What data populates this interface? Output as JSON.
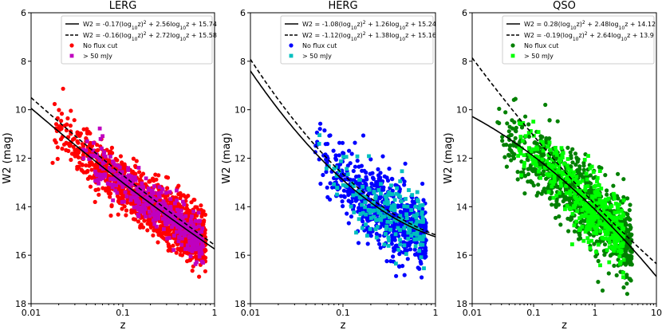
{
  "figure": {
    "ylabel": "W2 (mag)",
    "xlabel": "z"
  },
  "chart_data": [
    {
      "type": "scatter",
      "title": "LERG",
      "xlabel": "z",
      "ylabel": "W2 (mag)",
      "xscale": "log",
      "xlim": [
        0.01,
        1
      ],
      "ylim": [
        18,
        6
      ],
      "y_inverted": true,
      "xticks": [
        0.01,
        0.1,
        1
      ],
      "xtick_labels": [
        "0.01",
        "0.1",
        "1"
      ],
      "yticks": [
        6,
        8,
        10,
        12,
        14,
        16,
        18
      ],
      "ytick_labels": [
        "6",
        "8",
        "10",
        "12",
        "14",
        "16",
        "18"
      ],
      "fits": [
        {
          "label": "W2 = -0.17(log10z)^2 + 2.56log10z + 15.74",
          "a": -0.17,
          "b": 2.56,
          "c": 15.74,
          "style": "solid"
        },
        {
          "label": "W2 = -0.16(log10z)^2 + 2.72log10z + 15.58",
          "a": -0.16,
          "b": 2.72,
          "c": 15.58,
          "style": "dashed"
        }
      ],
      "series": [
        {
          "name": "No flux cut",
          "marker": "circle",
          "color": "#ff0000",
          "z_range": [
            0.016,
            0.8
          ],
          "approx_count": 1400,
          "scatter_mag": 0.55
        },
        {
          "name": "> 50 mJy",
          "marker": "square",
          "color": "#bf00bf",
          "z_range": [
            0.035,
            0.75
          ],
          "approx_count": 420,
          "scatter_mag": 0.45
        }
      ],
      "legend": "top-right"
    },
    {
      "type": "scatter",
      "title": "HERG",
      "xlabel": "z",
      "ylabel": "W2 (mag)",
      "xscale": "log",
      "xlim": [
        0.01,
        1
      ],
      "ylim": [
        18,
        6
      ],
      "y_inverted": true,
      "xticks": [
        0.01,
        0.1,
        1
      ],
      "xtick_labels": [
        "0.01",
        "0.1",
        "1"
      ],
      "yticks": [
        6,
        8,
        10,
        12,
        14,
        16,
        18
      ],
      "ytick_labels": [
        "6",
        "8",
        "10",
        "12",
        "14",
        "16",
        "18"
      ],
      "fits": [
        {
          "label": "W2 = -1.08(log10z)^2 + 1.26log10z + 15.24",
          "a": -1.08,
          "b": 1.26,
          "c": 15.24,
          "style": "solid"
        },
        {
          "label": "W2 = -1.12(log10z)^2 + 1.38log10z + 15.16",
          "a": -1.12,
          "b": 1.38,
          "c": 15.16,
          "style": "dashed"
        }
      ],
      "series": [
        {
          "name": "No flux cut",
          "marker": "circle",
          "color": "#0000ff",
          "z_range": [
            0.045,
            0.8
          ],
          "approx_count": 700,
          "scatter_mag": 0.75
        },
        {
          "name": "> 50 mJy",
          "marker": "square",
          "color": "#00bfbf",
          "z_range": [
            0.05,
            0.75
          ],
          "approx_count": 200,
          "scatter_mag": 0.7
        }
      ],
      "legend": "top-right"
    },
    {
      "type": "scatter",
      "title": "QSO",
      "xlabel": "z",
      "ylabel": "W2 (mag)",
      "xscale": "log",
      "xlim": [
        0.01,
        10
      ],
      "ylim": [
        18,
        6
      ],
      "y_inverted": true,
      "xticks": [
        0.01,
        0.1,
        1,
        10
      ],
      "xtick_labels": [
        "0.01",
        "0.1",
        "1",
        "10"
      ],
      "yticks": [
        6,
        8,
        10,
        12,
        14,
        16,
        18
      ],
      "ytick_labels": [
        "6",
        "8",
        "10",
        "12",
        "14",
        "16",
        "18"
      ],
      "fits": [
        {
          "label": "W2 = 0.28(log10z)^2 + 2.48log10z + 14.12",
          "a": 0.28,
          "b": 2.48,
          "c": 14.12,
          "style": "solid"
        },
        {
          "label": "W2 = -0.19(log10z)^2 + 2.64log10z + 13.9",
          "a": -0.19,
          "b": 2.64,
          "c": 13.9,
          "style": "dashed"
        }
      ],
      "series": [
        {
          "name": "No flux cut",
          "marker": "circle",
          "color": "#008000",
          "z_range": [
            0.025,
            4.0
          ],
          "approx_count": 900,
          "scatter_mag": 0.8
        },
        {
          "name": "> 50 mJy",
          "marker": "square",
          "color": "#00ff00",
          "z_range": [
            0.05,
            3.0
          ],
          "approx_count": 450,
          "scatter_mag": 0.7
        }
      ],
      "legend": "top-right"
    }
  ]
}
